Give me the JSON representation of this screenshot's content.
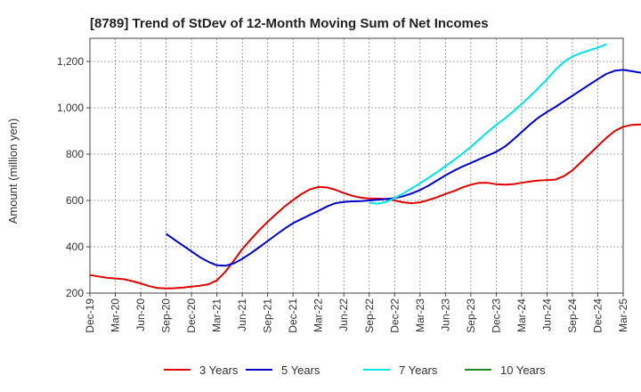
{
  "chart_data": {
    "type": "line",
    "title": "[8789]  Trend of StDev of 12-Month Moving Sum of Net Incomes",
    "ylabel": "Amount (million yen)",
    "xlabel": "",
    "ylim": [
      200,
      1300
    ],
    "yticks": [
      200,
      400,
      600,
      800,
      "1,000",
      "1,200"
    ],
    "ytick_values": [
      200,
      400,
      600,
      800,
      1000,
      1200
    ],
    "xticks": [
      "Dec-19",
      "Mar-20",
      "Jun-20",
      "Sep-20",
      "Dec-20",
      "Mar-21",
      "Jun-21",
      "Sep-21",
      "Dec-21",
      "Mar-22",
      "Jun-22",
      "Sep-22",
      "Dec-22",
      "Mar-23",
      "Jun-23",
      "Sep-23",
      "Dec-23",
      "Mar-24",
      "Jun-24",
      "Sep-24",
      "Dec-24",
      "Mar-25"
    ],
    "grid": true,
    "legend_position": "bottom",
    "series": [
      {
        "name": "3 Years",
        "color": "#e00000",
        "start_month_index": 0,
        "values": [
          278,
          272,
          266,
          263,
          260,
          252,
          242,
          230,
          222,
          220,
          221,
          224,
          228,
          232,
          238,
          255,
          292,
          340,
          390,
          432,
          472,
          508,
          542,
          574,
          602,
          628,
          648,
          658,
          656,
          646,
          632,
          620,
          612,
          608,
          608,
          606,
          600,
          592,
          588,
          592,
          602,
          614,
          628,
          640,
          656,
          668,
          676,
          676,
          670,
          668,
          670,
          676,
          682,
          686,
          688,
          690,
          705,
          730,
          765,
          800,
          835,
          870,
          900,
          918,
          926,
          928,
          929,
          929,
          930,
          931
        ]
      },
      {
        "name": "5 Years",
        "color": "#0000cc",
        "start_month_index": 9,
        "values": [
          456,
          430,
          405,
          380,
          355,
          335,
          320,
          318,
          328,
          348,
          372,
          398,
          425,
          452,
          478,
          502,
          520,
          538,
          555,
          574,
          588,
          594,
          596,
          597,
          600,
          603,
          606,
          610,
          618,
          630,
          645,
          664,
          686,
          708,
          728,
          746,
          762,
          778,
          794,
          810,
          832,
          862,
          895,
          928,
          958,
          982,
          1004,
          1028,
          1052,
          1076,
          1100,
          1124,
          1146,
          1160,
          1164,
          1158,
          1152,
          1146,
          1143,
          1141
        ]
      },
      {
        "name": "7 Years",
        "color": "#00e5e5",
        "start_month_index": 33,
        "values": [
          590,
          586,
          594,
          610,
          630,
          652,
          674,
          698,
          722,
          748,
          774,
          802,
          832,
          864,
          896,
          926,
          954,
          984,
          1016,
          1050,
          1086,
          1124,
          1164,
          1198,
          1222,
          1236,
          1248,
          1260,
          1274
        ]
      },
      {
        "name": "10 Years",
        "color": "#228b22",
        "start_month_index": 0,
        "values": []
      }
    ]
  }
}
